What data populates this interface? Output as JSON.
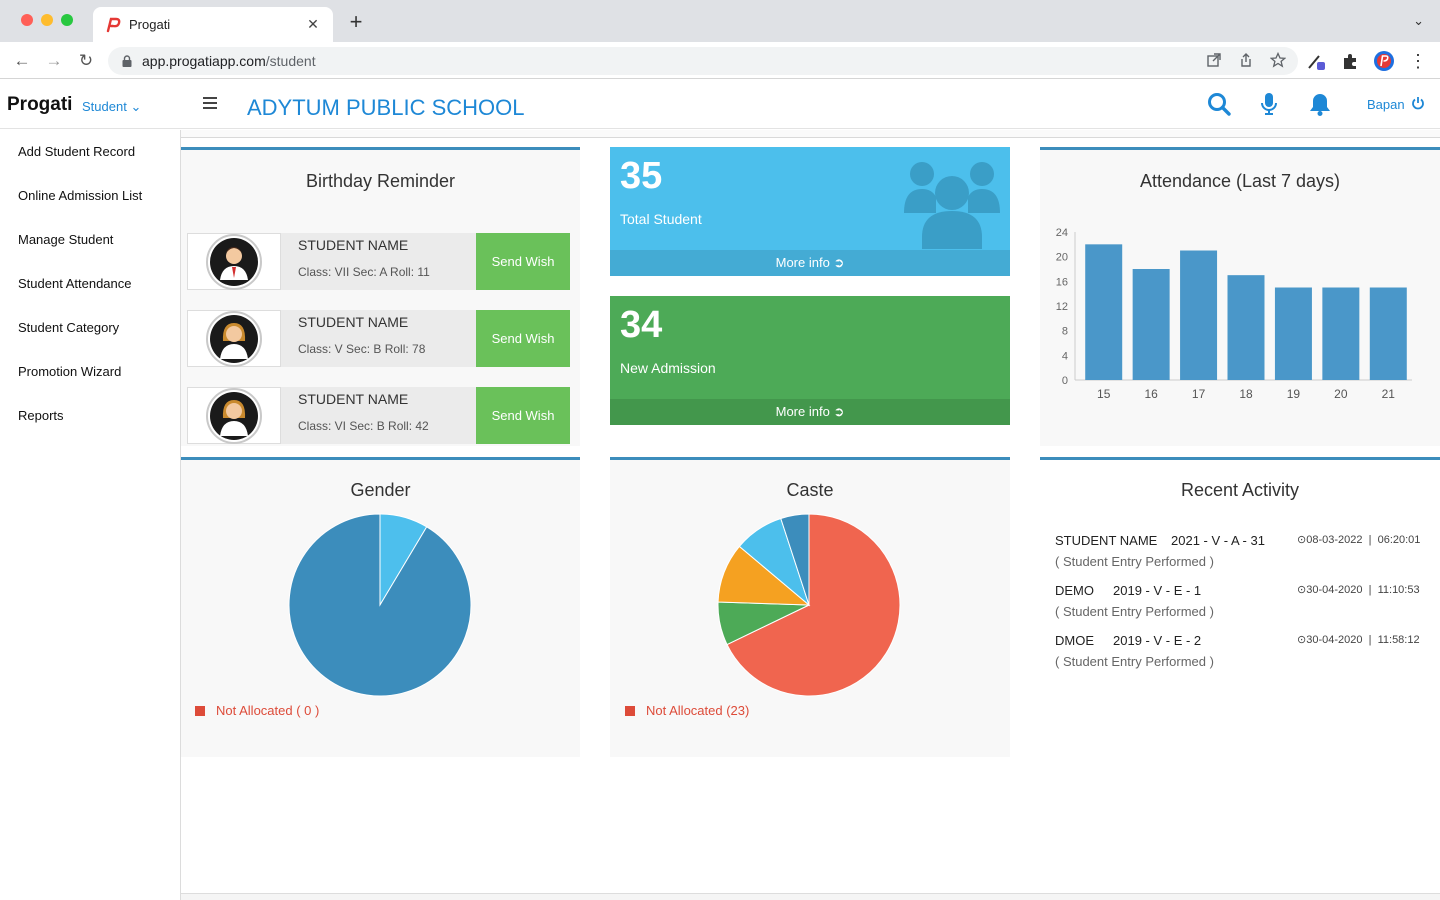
{
  "browser": {
    "tab_title": "Progati",
    "url_host": "app.progatiapp.com",
    "url_path": "/student"
  },
  "header": {
    "brand": "Progati",
    "module": "Student",
    "school": "ADYTUM PUBLIC SCHOOL",
    "user": "Bapan",
    "icons": [
      "search-icon",
      "microphone-icon",
      "bell-icon",
      "power-icon"
    ],
    "accent_color": "#1e88d6"
  },
  "sidebar": {
    "items": [
      {
        "label": "Add Student Record"
      },
      {
        "label": "Online Admission List"
      },
      {
        "label": "Manage Student"
      },
      {
        "label": "Student Attendance"
      },
      {
        "label": "Student Category"
      },
      {
        "label": "Promotion Wizard"
      },
      {
        "label": "Reports"
      }
    ]
  },
  "birthday": {
    "title": "Birthday Reminder",
    "rows": [
      {
        "name": "STUDENT NAME",
        "details": "Class: VII Sec: A Roll: 11",
        "button": "Send Wish",
        "avatar": "male-student-avatar"
      },
      {
        "name": "STUDENT NAME",
        "details": "Class: V Sec: B Roll: 78",
        "button": "Send Wish",
        "avatar": "female-student-avatar"
      },
      {
        "name": "STUDENT NAME",
        "details": "Class: VI Sec: B Roll: 42",
        "button": "Send Wish",
        "avatar": "female-student-avatar"
      }
    ]
  },
  "stats": {
    "total": {
      "value": "35",
      "label": "Total Student",
      "footer": "More info",
      "color": "#4cbfec"
    },
    "admission": {
      "value": "34",
      "label": "New Admission",
      "footer": "More info",
      "color": "#4daa57"
    }
  },
  "attendance": {
    "title": "Attendance (Last 7 days)"
  },
  "gender": {
    "title": "Gender",
    "legend": "Not Allocated ( 0 )"
  },
  "caste": {
    "title": "Caste",
    "legend": "Not Allocated (23)"
  },
  "activity": {
    "title": "Recent Activity",
    "items": [
      {
        "name": "STUDENT NAME",
        "code": "2021 - V - A - 31",
        "sub": "( Student Entry Performed )",
        "date": "08-03-2022",
        "time": "06:20:01"
      },
      {
        "name": "DEMO",
        "code": "2019 - V - E - 1",
        "sub": "( Student Entry Performed )",
        "date": "30-04-2020",
        "time": "11:10:53"
      },
      {
        "name": "DMOE",
        "code": "2019 - V - E - 2",
        "sub": "( Student Entry Performed )",
        "date": "30-04-2020",
        "time": "11:58:12"
      }
    ]
  },
  "chart_data": [
    {
      "type": "bar",
      "title": "Attendance (Last 7 days)",
      "categories": [
        "15",
        "16",
        "17",
        "18",
        "19",
        "20",
        "21"
      ],
      "values": [
        22,
        18,
        21,
        17,
        15,
        15,
        15
      ],
      "ylim": [
        0,
        24
      ],
      "yticks": [
        0,
        4,
        8,
        12,
        16,
        20,
        24
      ],
      "color": "#4a97c9",
      "grid": false
    },
    {
      "type": "pie",
      "title": "Gender",
      "slices": [
        {
          "label": "Not Allocated ( 0 )",
          "value": 0
        },
        {
          "value": 3
        },
        {
          "value": 32
        }
      ],
      "colors": [
        "#dd4b39",
        "#4dbfed",
        "#3c8dbc"
      ]
    },
    {
      "type": "pie",
      "title": "Caste",
      "slices": [
        {
          "label": "Not Allocated (23)",
          "value": 23
        },
        {
          "value": 2.6
        },
        {
          "value": 3.6
        },
        {
          "value": 3.0
        },
        {
          "value": 1.7
        }
      ],
      "colors": [
        "#f0654f",
        "#4daa57",
        "#f5a121",
        "#4cbfec",
        "#3c8dbc"
      ]
    }
  ]
}
